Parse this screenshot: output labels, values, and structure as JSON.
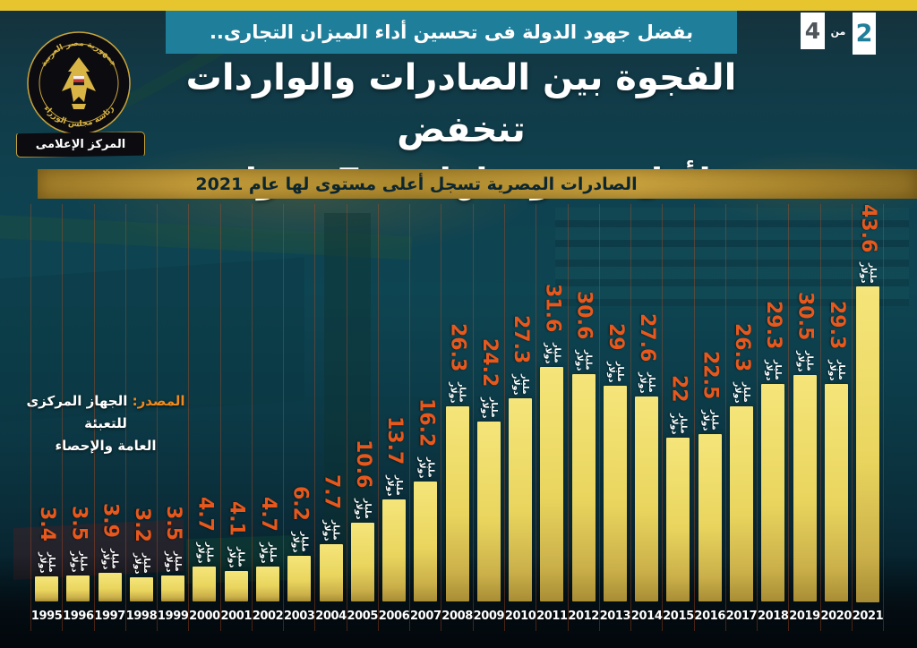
{
  "sheet": {
    "current": "2",
    "of_label": "من",
    "total": "4"
  },
  "header": {
    "kicker": "بفضل جهود الدولة فى تحسين أداء الميزان التجارى..",
    "title_line1": "الفجوة بين الصادرات والواردات تنخفض",
    "title_line2": "لأقل مستوى لها منذ 7 سنوات",
    "banner": "الصادرات المصرية تسجل أعلى مستوى لها عام 2021"
  },
  "logo": {
    "ring_top": "جمهورية مصر العربية",
    "ring_bottom": "رئاسة مجلس الوزراء",
    "ribbon": "المركز الإعلامى"
  },
  "source": {
    "label": "المصدر:",
    "line1": "الجهاز المركزى للتعبئة",
    "line2": "العامة والإحصاء"
  },
  "chart_data": {
    "type": "bar",
    "title": "الصادرات المصرية تسجل أعلى مستوى لها عام 2021",
    "unit_label": "مليار دولار",
    "categories": [
      "1995",
      "1996",
      "1997",
      "1998",
      "1999",
      "2000",
      "2001",
      "2002",
      "2003",
      "2004",
      "2005",
      "2006",
      "2007",
      "2008",
      "2009",
      "2010",
      "2011",
      "2012",
      "2013",
      "2014",
      "2015",
      "2016",
      "2017",
      "2018",
      "2019",
      "2020",
      "2021"
    ],
    "values": [
      3.4,
      3.5,
      3.9,
      3.2,
      3.5,
      4.7,
      4.1,
      4.7,
      6.2,
      7.7,
      10.6,
      13.7,
      16.2,
      26.3,
      24.2,
      27.3,
      31.6,
      30.6,
      29,
      27.6,
      22,
      22.5,
      26.3,
      29.3,
      30.5,
      29.3,
      43.6
    ],
    "ylim": [
      0,
      45
    ],
    "grid": false,
    "legend": "none",
    "bar_color": "#ecd75f",
    "value_color": "#e8581c",
    "separator_line_color": "#b44a1e",
    "accent_gold": "#b08c30",
    "accent_teal": "#1f7f9b",
    "top_strip_color": "#e6c52e"
  }
}
